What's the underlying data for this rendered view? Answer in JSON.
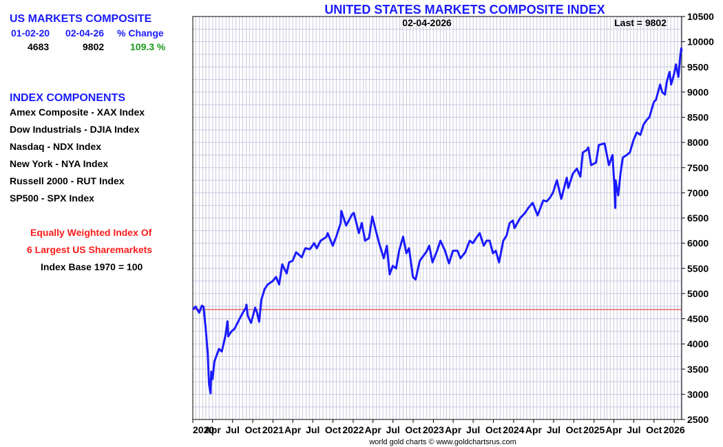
{
  "summary": {
    "title": "US MARKETS COMPOSITE",
    "col_start_date": "01-02-20",
    "col_end_date": "02-04-26",
    "col_change": "% Change",
    "start_value": "4683",
    "end_value": "9802",
    "change_value": "109.3 %"
  },
  "components": {
    "heading": "INDEX COMPONENTS",
    "items": [
      "Amex Composite - XAX Index",
      "Dow Industrials - DJIA Index",
      "Nasdaq - NDX Index",
      "New York - NYA Index",
      "Russell 2000 - RUT Index",
      "SP500 - SPX Index"
    ]
  },
  "notes": {
    "line1": "Equally Weighted Index Of",
    "line2": "6 Largest US Sharemarkets",
    "line3": "Index Base 1970 = 100"
  },
  "credit": "world gold charts © www.goldchartsrus.com",
  "colors": {
    "series": "#1a1aff",
    "reference": "#dd2222",
    "grid": "#c8c8e0",
    "blue_text": "#1a1aff",
    "green_text": "#1a9a1a",
    "red_text": "#ff1a1a"
  },
  "chart_data": {
    "type": "line",
    "title": "UNITED STATES MARKETS COMPOSITE INDEX",
    "subtitle": "02-04-2026",
    "last_label": "Last = 9802",
    "x_start": "2020-01-02",
    "x_end": "2026-02-04",
    "ylim": [
      2500,
      10500
    ],
    "y_ticks": [
      2500,
      3000,
      3500,
      4000,
      4500,
      5000,
      5500,
      6000,
      6500,
      7000,
      7500,
      8000,
      8500,
      9000,
      9500,
      10000,
      10500
    ],
    "x_tick_labels": [
      {
        "label": "2020",
        "date": "2020-01-01",
        "year": true
      },
      {
        "label": "Apr",
        "date": "2020-04-01"
      },
      {
        "label": "Jul",
        "date": "2020-07-01"
      },
      {
        "label": "Oct",
        "date": "2020-10-01"
      },
      {
        "label": "2021",
        "date": "2021-01-01",
        "year": true
      },
      {
        "label": "Apr",
        "date": "2021-04-01"
      },
      {
        "label": "Jul",
        "date": "2021-07-01"
      },
      {
        "label": "Oct",
        "date": "2021-10-01"
      },
      {
        "label": "2022",
        "date": "2022-01-01",
        "year": true
      },
      {
        "label": "Apr",
        "date": "2022-04-01"
      },
      {
        "label": "Jul",
        "date": "2022-07-01"
      },
      {
        "label": "Oct",
        "date": "2022-10-01"
      },
      {
        "label": "2023",
        "date": "2023-01-01",
        "year": true
      },
      {
        "label": "Apr",
        "date": "2023-04-01"
      },
      {
        "label": "Jul",
        "date": "2023-07-01"
      },
      {
        "label": "Oct",
        "date": "2023-10-01"
      },
      {
        "label": "2024",
        "date": "2024-01-01",
        "year": true
      },
      {
        "label": "Apr",
        "date": "2024-04-01"
      },
      {
        "label": "Jul",
        "date": "2024-07-01"
      },
      {
        "label": "Oct",
        "date": "2024-10-01"
      },
      {
        "label": "2025",
        "date": "2025-01-01",
        "year": true
      },
      {
        "label": "Apr",
        "date": "2025-04-01"
      },
      {
        "label": "Jul",
        "date": "2025-07-01"
      },
      {
        "label": "Oct",
        "date": "2025-10-01"
      },
      {
        "label": "2026",
        "date": "2026-01-01",
        "year": true
      }
    ],
    "reference_value": 4683,
    "grid": true,
    "series": [
      {
        "points": [
          [
            "2020-01-02",
            4683
          ],
          [
            "2020-01-15",
            4740
          ],
          [
            "2020-01-31",
            4620
          ],
          [
            "2020-02-12",
            4760
          ],
          [
            "2020-02-20",
            4740
          ],
          [
            "2020-03-01",
            4300
          ],
          [
            "2020-03-10",
            3800
          ],
          [
            "2020-03-16",
            3200
          ],
          [
            "2020-03-23",
            3020
          ],
          [
            "2020-03-26",
            3450
          ],
          [
            "2020-04-01",
            3300
          ],
          [
            "2020-04-09",
            3650
          ],
          [
            "2020-04-20",
            3780
          ],
          [
            "2020-04-30",
            3900
          ],
          [
            "2020-05-13",
            3850
          ],
          [
            "2020-05-29",
            4150
          ],
          [
            "2020-06-08",
            4450
          ],
          [
            "2020-06-11",
            4150
          ],
          [
            "2020-06-26",
            4250
          ],
          [
            "2020-07-10",
            4300
          ],
          [
            "2020-07-31",
            4480
          ],
          [
            "2020-08-14",
            4600
          ],
          [
            "2020-08-31",
            4720
          ],
          [
            "2020-09-02",
            4780
          ],
          [
            "2020-09-08",
            4560
          ],
          [
            "2020-09-23",
            4420
          ],
          [
            "2020-10-12",
            4720
          ],
          [
            "2020-10-20",
            4630
          ],
          [
            "2020-10-30",
            4440
          ],
          [
            "2020-11-09",
            4880
          ],
          [
            "2020-11-24",
            5090
          ],
          [
            "2020-12-08",
            5180
          ],
          [
            "2020-12-31",
            5250
          ],
          [
            "2021-01-15",
            5330
          ],
          [
            "2021-01-29",
            5180
          ],
          [
            "2021-02-12",
            5580
          ],
          [
            "2021-03-04",
            5400
          ],
          [
            "2021-03-15",
            5620
          ],
          [
            "2021-03-31",
            5650
          ],
          [
            "2021-04-16",
            5820
          ],
          [
            "2021-05-12",
            5720
          ],
          [
            "2021-05-28",
            5900
          ],
          [
            "2021-06-18",
            5880
          ],
          [
            "2021-07-07",
            6000
          ],
          [
            "2021-07-19",
            5900
          ],
          [
            "2021-08-06",
            6050
          ],
          [
            "2021-08-31",
            6120
          ],
          [
            "2021-09-07",
            6200
          ],
          [
            "2021-09-30",
            5950
          ],
          [
            "2021-10-15",
            6120
          ],
          [
            "2021-11-05",
            6400
          ],
          [
            "2021-11-08",
            6640
          ],
          [
            "2021-11-30",
            6350
          ],
          [
            "2021-12-28",
            6580
          ],
          [
            "2022-01-04",
            6600
          ],
          [
            "2022-01-27",
            6200
          ],
          [
            "2022-02-09",
            6400
          ],
          [
            "2022-02-24",
            6050
          ],
          [
            "2022-03-14",
            6100
          ],
          [
            "2022-03-29",
            6530
          ],
          [
            "2022-04-11",
            6300
          ],
          [
            "2022-04-29",
            6000
          ],
          [
            "2022-05-20",
            5700
          ],
          [
            "2022-06-03",
            5950
          ],
          [
            "2022-06-16",
            5380
          ],
          [
            "2022-06-30",
            5550
          ],
          [
            "2022-07-15",
            5500
          ],
          [
            "2022-07-29",
            5850
          ],
          [
            "2022-08-16",
            6130
          ],
          [
            "2022-08-31",
            5800
          ],
          [
            "2022-09-12",
            5900
          ],
          [
            "2022-09-30",
            5330
          ],
          [
            "2022-10-12",
            5280
          ],
          [
            "2022-10-31",
            5650
          ],
          [
            "2022-11-30",
            5830
          ],
          [
            "2022-12-13",
            5950
          ],
          [
            "2022-12-28",
            5620
          ],
          [
            "2023-01-18",
            5850
          ],
          [
            "2023-02-02",
            6050
          ],
          [
            "2023-02-23",
            5850
          ],
          [
            "2023-03-13",
            5600
          ],
          [
            "2023-03-31",
            5850
          ],
          [
            "2023-04-21",
            5850
          ],
          [
            "2023-05-04",
            5700
          ],
          [
            "2023-05-26",
            5820
          ],
          [
            "2023-06-15",
            6050
          ],
          [
            "2023-06-30",
            6000
          ],
          [
            "2023-07-14",
            6100
          ],
          [
            "2023-07-31",
            6200
          ],
          [
            "2023-08-18",
            5950
          ],
          [
            "2023-08-31",
            6050
          ],
          [
            "2023-09-14",
            6050
          ],
          [
            "2023-09-29",
            5800
          ],
          [
            "2023-10-12",
            5850
          ],
          [
            "2023-10-27",
            5620
          ],
          [
            "2023-11-15",
            6050
          ],
          [
            "2023-11-30",
            6150
          ],
          [
            "2023-12-14",
            6400
          ],
          [
            "2023-12-29",
            6450
          ],
          [
            "2024-01-05",
            6300
          ],
          [
            "2024-01-31",
            6500
          ],
          [
            "2024-02-22",
            6600
          ],
          [
            "2024-03-08",
            6700
          ],
          [
            "2024-03-28",
            6800
          ],
          [
            "2024-04-19",
            6550
          ],
          [
            "2024-05-15",
            6850
          ],
          [
            "2024-05-31",
            6830
          ],
          [
            "2024-06-14",
            6900
          ],
          [
            "2024-06-28",
            7000
          ],
          [
            "2024-07-16",
            7250
          ],
          [
            "2024-08-05",
            6880
          ],
          [
            "2024-08-30",
            7300
          ],
          [
            "2024-09-06",
            7100
          ],
          [
            "2024-09-27",
            7380
          ],
          [
            "2024-10-15",
            7480
          ],
          [
            "2024-10-31",
            7320
          ],
          [
            "2024-11-11",
            7800
          ],
          [
            "2024-11-29",
            7850
          ],
          [
            "2024-12-06",
            7900
          ],
          [
            "2024-12-19",
            7550
          ],
          [
            "2025-01-10",
            7600
          ],
          [
            "2025-01-23",
            7950
          ],
          [
            "2025-02-18",
            7980
          ],
          [
            "2025-03-10",
            7550
          ],
          [
            "2025-03-26",
            7750
          ],
          [
            "2025-04-03",
            7200
          ],
          [
            "2025-04-08",
            6700
          ],
          [
            "2025-04-09",
            7250
          ],
          [
            "2025-04-21",
            6950
          ],
          [
            "2025-05-02",
            7400
          ],
          [
            "2025-05-12",
            7700
          ],
          [
            "2025-05-30",
            7750
          ],
          [
            "2025-06-13",
            7800
          ],
          [
            "2025-06-30",
            8050
          ],
          [
            "2025-07-15",
            8200
          ],
          [
            "2025-07-31",
            8150
          ],
          [
            "2025-08-14",
            8350
          ],
          [
            "2025-08-29",
            8450
          ],
          [
            "2025-09-10",
            8500
          ],
          [
            "2025-09-30",
            8800
          ],
          [
            "2025-10-10",
            8850
          ],
          [
            "2025-10-29",
            9150
          ],
          [
            "2025-11-07",
            9000
          ],
          [
            "2025-11-20",
            8950
          ],
          [
            "2025-11-28",
            9200
          ],
          [
            "2025-12-11",
            9400
          ],
          [
            "2025-12-18",
            9150
          ],
          [
            "2025-12-31",
            9350
          ],
          [
            "2026-01-09",
            9550
          ],
          [
            "2026-01-20",
            9300
          ],
          [
            "2026-01-28",
            9700
          ],
          [
            "2026-02-02",
            9870
          ],
          [
            "2026-02-04",
            9802
          ]
        ]
      }
    ]
  }
}
